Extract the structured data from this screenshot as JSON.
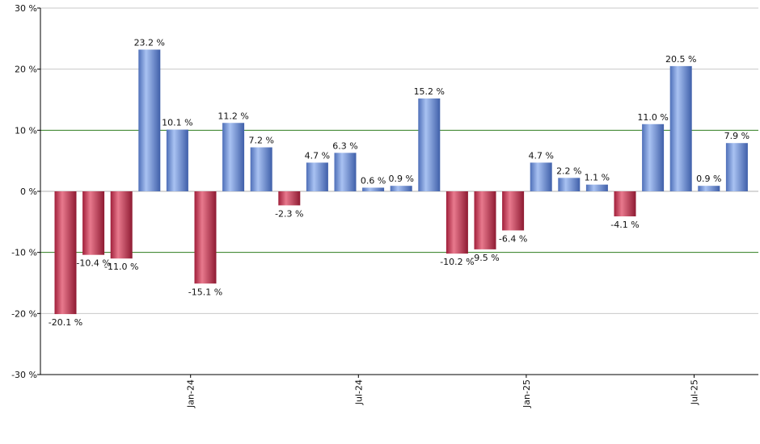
{
  "chart_data": {
    "type": "bar",
    "title": "",
    "xlabel": "",
    "ylabel": "",
    "ylim": [
      -30,
      30
    ],
    "yticks": [
      -30,
      -20,
      -10,
      0,
      10,
      20,
      30
    ],
    "ytick_labels": [
      "-30 %",
      "-20 %",
      "-10 %",
      "0 %",
      "10 %",
      "20 %",
      "30 %"
    ],
    "grid": true,
    "reference_lines": [
      10,
      -10
    ],
    "value_suffix": " %",
    "x_tick_labels": [
      {
        "index": 5,
        "label": "Jan-24"
      },
      {
        "index": 11,
        "label": "Jul-24"
      },
      {
        "index": 17,
        "label": "Jan-25"
      },
      {
        "index": 23,
        "label": "Jul-25"
      }
    ],
    "values": [
      -20.1,
      -10.4,
      -11.0,
      23.2,
      10.1,
      -15.1,
      11.2,
      7.2,
      -2.3,
      4.7,
      6.3,
      0.6,
      0.9,
      15.2,
      -10.2,
      -9.5,
      -6.4,
      4.7,
      2.2,
      1.1,
      -4.1,
      11.0,
      20.5,
      0.9,
      7.9
    ],
    "colors": {
      "positive": "#6f92de",
      "negative": "#c8304f",
      "reference_line": "#2e7d1e",
      "grid": "#c8c8c8",
      "axis": "#000000"
    }
  }
}
